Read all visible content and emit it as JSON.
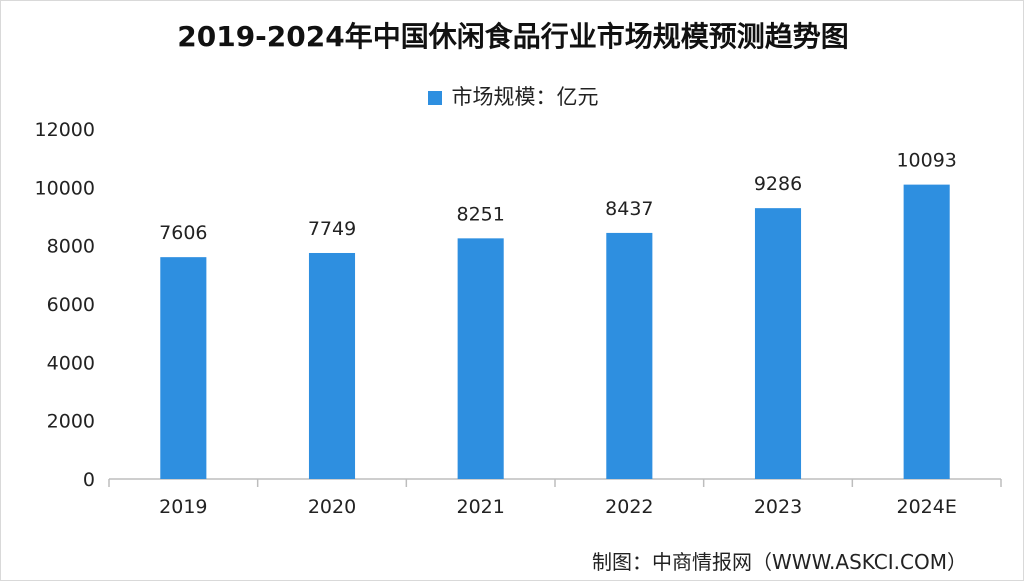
{
  "title": "2019-2024年中国休闲食品行业市场规模预测趋势图",
  "source": "制图：中商情报网（WWW.ASKCI.COM）",
  "colors": {
    "bar": "#2e8fe0",
    "axis": "#bdbdbd",
    "text": "#222222"
  },
  "chart_data": {
    "type": "bar",
    "title": "2019-2024年中国休闲食品行业市场规模预测趋势图",
    "categories": [
      "2019",
      "2020",
      "2021",
      "2022",
      "2023",
      "2024E"
    ],
    "series": [
      {
        "name": "市场规模：亿元",
        "values": [
          7606,
          7749,
          8251,
          8437,
          9286,
          10093
        ]
      }
    ],
    "data_labels": [
      "7606",
      "7749",
      "8251",
      "8437",
      "9286",
      "10093"
    ],
    "ylim": [
      0,
      12000
    ],
    "yticks": [
      0,
      2000,
      4000,
      6000,
      8000,
      10000,
      12000
    ],
    "grid": false,
    "legend_position": "top-center"
  }
}
